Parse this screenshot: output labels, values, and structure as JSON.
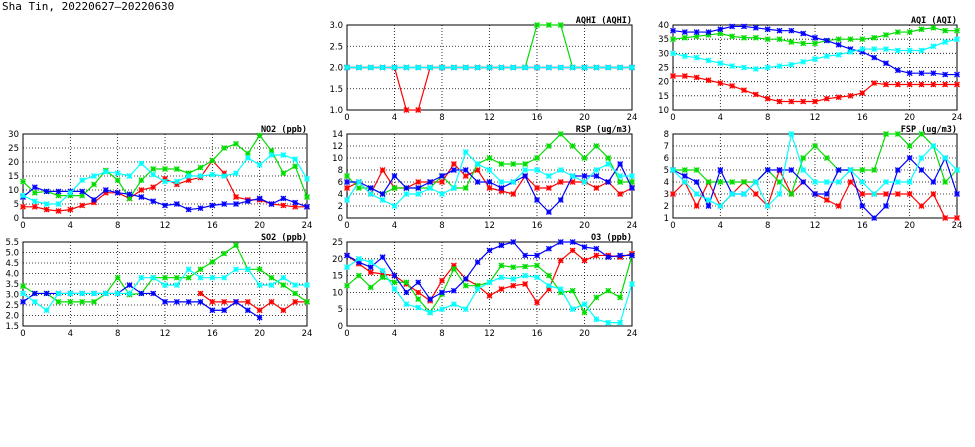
{
  "title": "Sha Tin, 20220627–20220630",
  "series_colors": [
    "#ff0000",
    "#00dd00",
    "#0000ff",
    "#00ffff"
  ],
  "chart_data": [
    {
      "type": "line",
      "title": "AQHI (AQHI)",
      "xlim": [
        0,
        24
      ],
      "xticks": [
        "0",
        "4",
        "8",
        "12",
        "16",
        "20",
        "24"
      ],
      "ylim": [
        1,
        3
      ],
      "yticks": [
        "1.0",
        "1.5",
        "2.0",
        "2.5",
        "3.0"
      ],
      "grid": true,
      "series": [
        {
          "name": "red",
          "values": [
            2,
            2,
            2,
            2,
            2,
            1,
            1,
            2,
            2,
            2,
            2,
            2,
            2,
            2,
            2,
            2,
            2,
            2,
            2,
            2,
            2,
            2,
            2,
            2,
            2
          ]
        },
        {
          "name": "green",
          "values": [
            2,
            2,
            2,
            2,
            2,
            2,
            2,
            2,
            2,
            2,
            2,
            2,
            2,
            2,
            2,
            2,
            3,
            3,
            3,
            2,
            2,
            2,
            2,
            2,
            2
          ]
        },
        {
          "name": "blue",
          "values": [
            2,
            2,
            2,
            2,
            2,
            2,
            2,
            2,
            2,
            2,
            2,
            2,
            2,
            2,
            2,
            2,
            2,
            2,
            2,
            2,
            2,
            2,
            2,
            2,
            2
          ]
        },
        {
          "name": "cyan",
          "values": [
            2,
            2,
            2,
            2,
            2,
            2,
            2,
            2,
            2,
            2,
            2,
            2,
            2,
            2,
            2,
            2,
            2,
            2,
            2,
            2,
            2,
            2,
            2,
            2,
            2
          ]
        }
      ]
    },
    {
      "type": "line",
      "title": "AQI (AQI)",
      "xlim": [
        0,
        24
      ],
      "xticks": [
        "0",
        "4",
        "8",
        "12",
        "16",
        "20",
        "24"
      ],
      "ylim": [
        10,
        40
      ],
      "yticks": [
        "10",
        "15",
        "20",
        "25",
        "30",
        "35",
        "40"
      ],
      "grid": true,
      "series": [
        {
          "name": "red",
          "values": [
            22,
            22,
            21.5,
            20.5,
            19.5,
            18.5,
            17,
            15.5,
            14,
            13,
            13,
            13,
            13,
            14,
            14.5,
            15,
            16,
            19.5,
            19,
            19,
            19,
            19,
            19,
            19,
            19
          ]
        },
        {
          "name": "green",
          "values": [
            35,
            35.5,
            36,
            36.5,
            37,
            36,
            35.5,
            35.5,
            35,
            35,
            34,
            33.5,
            33.5,
            34.5,
            35,
            35,
            35,
            35.5,
            36.5,
            37.5,
            37.5,
            38.5,
            39,
            38,
            38
          ]
        },
        {
          "name": "blue",
          "values": [
            38,
            37.5,
            37.5,
            37.5,
            38.5,
            39.5,
            39.5,
            39,
            38.5,
            38,
            38,
            37,
            35.5,
            34.5,
            33,
            31.5,
            30.5,
            28.5,
            26.5,
            24,
            23,
            23,
            23,
            22.5,
            22.5
          ]
        },
        {
          "name": "cyan",
          "values": [
            30,
            29,
            28.5,
            27.5,
            26.5,
            25.5,
            25,
            24.5,
            25,
            25.5,
            26,
            27,
            28,
            29,
            29.5,
            30.5,
            31.5,
            31.5,
            31.5,
            31,
            31,
            31,
            32.5,
            34,
            35
          ]
        }
      ]
    },
    {
      "type": "line",
      "title": "NO2 (ppb)",
      "xlim": [
        0,
        24
      ],
      "xticks": [
        "0",
        "4",
        "8",
        "12",
        "16",
        "20",
        "24"
      ],
      "ylim": [
        0,
        30
      ],
      "yticks": [
        "0",
        "5",
        "10",
        "15",
        "20",
        "25",
        "30"
      ],
      "grid": true,
      "series": [
        {
          "name": "red",
          "values": [
            4,
            4,
            3,
            2.5,
            3,
            4.5,
            5.5,
            9,
            9,
            7,
            10,
            11,
            14,
            12,
            13.5,
            14.5,
            20.5,
            16,
            7.5,
            6.5,
            6.5,
            5,
            4.5,
            4,
            4
          ]
        },
        {
          "name": "green",
          "values": [
            13,
            9,
            9.5,
            8,
            8,
            8,
            12,
            17,
            13.5,
            7,
            13.5,
            17.5,
            17.5,
            17.5,
            16,
            18,
            20.5,
            25,
            26.5,
            23,
            29.5,
            24,
            16,
            18.5,
            7.5
          ]
        },
        {
          "name": "blue",
          "values": [
            7.5,
            11,
            9.5,
            9.5,
            9.5,
            9.5,
            6.5,
            10,
            9,
            8.5,
            7.5,
            6,
            4.5,
            5,
            3,
            3.5,
            4.5,
            5,
            5,
            6,
            7,
            5,
            7,
            5.5,
            4
          ]
        },
        {
          "name": "cyan",
          "values": [
            8,
            6,
            5,
            5,
            9,
            13.5,
            15,
            16.5,
            16,
            15,
            19.5,
            15.5,
            13,
            13,
            15,
            15,
            15.5,
            15,
            16,
            21.5,
            19,
            22.5,
            22.5,
            21,
            14
          ]
        }
      ]
    },
    {
      "type": "line",
      "title": "RSP (ug/m3)",
      "xlim": [
        0,
        24
      ],
      "xticks": [
        "0",
        "4",
        "8",
        "12",
        "16",
        "20",
        "24"
      ],
      "ylim": [
        0,
        14
      ],
      "yticks": [
        "0",
        "2",
        "4",
        "6",
        "8",
        "10",
        "12",
        "14"
      ],
      "grid": true,
      "series": [
        {
          "name": "red",
          "values": [
            5,
            6,
            4,
            8,
            5,
            5,
            6,
            6,
            6,
            9,
            7,
            8,
            5,
            4.5,
            4,
            7,
            5,
            5,
            6,
            6,
            6,
            5,
            6,
            4,
            5
          ]
        },
        {
          "name": "green",
          "values": [
            7,
            5,
            5,
            4,
            5,
            5,
            5,
            5,
            7,
            5,
            5,
            9,
            10,
            9,
            9,
            9,
            10,
            12,
            14,
            12,
            10,
            12,
            10,
            6,
            6
          ]
        },
        {
          "name": "blue",
          "values": [
            6,
            6,
            5,
            4,
            7,
            5,
            5,
            6,
            7,
            8,
            8,
            6,
            6,
            5,
            6,
            7,
            3,
            1,
            3,
            7,
            7,
            7,
            6,
            9,
            5
          ]
        },
        {
          "name": "cyan",
          "values": [
            3,
            6,
            4,
            3,
            2,
            4,
            4,
            5,
            4,
            5,
            11,
            9,
            8,
            6,
            6,
            8,
            8,
            7,
            8,
            7,
            6,
            8,
            9,
            7,
            7
          ]
        }
      ]
    },
    {
      "type": "line",
      "title": "FSP (ug/m3)",
      "xlim": [
        0,
        24
      ],
      "xticks": [
        "0",
        "4",
        "8",
        "12",
        "16",
        "20",
        "24"
      ],
      "ylim": [
        1,
        8
      ],
      "yticks": [
        "1",
        "2",
        "3",
        "4",
        "5",
        "6",
        "7",
        "8"
      ],
      "grid": true,
      "series": [
        {
          "name": "red",
          "values": [
            3,
            4,
            2,
            4,
            2,
            3,
            4,
            3,
            2,
            5,
            3,
            4,
            3,
            2.5,
            2,
            4,
            3,
            3,
            3,
            3,
            3,
            2,
            3,
            1,
            1
          ]
        },
        {
          "name": "green",
          "values": [
            5,
            5,
            5,
            4,
            4,
            4,
            4,
            4,
            5,
            4,
            3,
            6,
            7,
            6,
            5,
            5,
            5,
            5,
            8,
            8,
            7,
            8,
            7,
            4,
            5
          ]
        },
        {
          "name": "blue",
          "values": [
            5,
            4.5,
            4,
            2,
            5,
            3,
            3,
            4,
            5,
            5,
            5,
            4,
            3,
            3,
            5,
            5,
            2,
            1,
            2,
            5,
            6,
            5,
            4,
            6,
            3
          ]
        },
        {
          "name": "cyan",
          "values": [
            5,
            4,
            3,
            2.5,
            2,
            3,
            3,
            4,
            2,
            3,
            8,
            5,
            4,
            4,
            4,
            5,
            4,
            3,
            4,
            4,
            4,
            6,
            7,
            6,
            5
          ]
        }
      ]
    },
    {
      "type": "line",
      "title": "SO2 (ppb)",
      "xlim": [
        0,
        24
      ],
      "xticks": [
        "0",
        "4",
        "8",
        "12",
        "16",
        "20",
        "24"
      ],
      "ylim": [
        1.5,
        5.5
      ],
      "yticks": [
        "1.5",
        "2.0",
        "2.5",
        "3.0",
        "3.5",
        "4.0",
        "4.5",
        "5.0",
        "5.5"
      ],
      "grid": true,
      "series": [
        {
          "name": "red",
          "values": [
            null,
            null,
            null,
            null,
            null,
            null,
            null,
            null,
            null,
            null,
            null,
            null,
            null,
            null,
            null,
            3.05,
            2.65,
            2.65,
            2.65,
            2.65,
            2.25,
            2.65,
            2.25,
            2.65,
            2.65
          ]
        },
        {
          "name": "green",
          "values": [
            3.4,
            3.05,
            3.05,
            2.65,
            2.65,
            2.65,
            2.65,
            3.05,
            3.8,
            3.0,
            3.05,
            3.8,
            3.8,
            3.8,
            3.8,
            4.2,
            4.55,
            4.95,
            5.35,
            4.2,
            4.2,
            3.8,
            3.45,
            3.05,
            2.65
          ]
        },
        {
          "name": "blue",
          "values": [
            2.65,
            3.05,
            3.05,
            3.05,
            3.05,
            3.05,
            3.05,
            3.05,
            3.05,
            3.45,
            3.05,
            3.05,
            2.65,
            2.65,
            2.65,
            2.65,
            2.25,
            2.25,
            2.65,
            2.25,
            1.9,
            null,
            null,
            null,
            null
          ]
        },
        {
          "name": "cyan",
          "values": [
            3.05,
            2.65,
            2.25,
            3.05,
            3.05,
            3.05,
            3.05,
            3.05,
            3.05,
            3.05,
            3.8,
            3.8,
            3.45,
            3.45,
            4.2,
            3.8,
            3.8,
            3.8,
            4.2,
            4.2,
            3.45,
            3.45,
            3.8,
            3.45,
            3.45
          ]
        }
      ]
    },
    {
      "type": "line",
      "title": "O3 (ppb)",
      "xlim": [
        0,
        24
      ],
      "xticks": [
        "0",
        "4",
        "8",
        "12",
        "16",
        "20",
        "24"
      ],
      "ylim": [
        0,
        25
      ],
      "yticks": [
        "0",
        "5",
        "10",
        "15",
        "20",
        "25"
      ],
      "grid": true,
      "series": [
        {
          "name": "red",
          "values": [
            21,
            18.5,
            16,
            15.5,
            15,
            12.5,
            10,
            7.5,
            13.5,
            18,
            14,
            12,
            9,
            11,
            12,
            12.5,
            7,
            11,
            19.5,
            22.5,
            19.5,
            21,
            21,
            20.5,
            21.5
          ]
        },
        {
          "name": "green",
          "values": [
            12,
            15,
            11.5,
            14.5,
            13,
            13,
            8,
            4,
            9.5,
            17,
            12,
            12,
            13,
            18,
            17.5,
            17.7,
            18,
            15,
            10,
            10.5,
            4,
            8.5,
            10.5,
            8.5,
            21
          ]
        },
        {
          "name": "blue",
          "values": [
            21,
            19,
            17.5,
            20.5,
            15,
            10,
            13,
            8,
            10,
            10.5,
            14,
            19,
            22.5,
            24,
            25,
            21,
            21,
            23,
            25,
            25,
            23.5,
            23,
            20.5,
            21,
            21
          ]
        },
        {
          "name": "cyan",
          "values": [
            17.5,
            20,
            19,
            16.5,
            11,
            6.5,
            5.5,
            4,
            5,
            6.5,
            5,
            11,
            13,
            14.5,
            14,
            15,
            14.5,
            12,
            11,
            5,
            6.5,
            2,
            1,
            1,
            12.5
          ]
        }
      ]
    }
  ]
}
